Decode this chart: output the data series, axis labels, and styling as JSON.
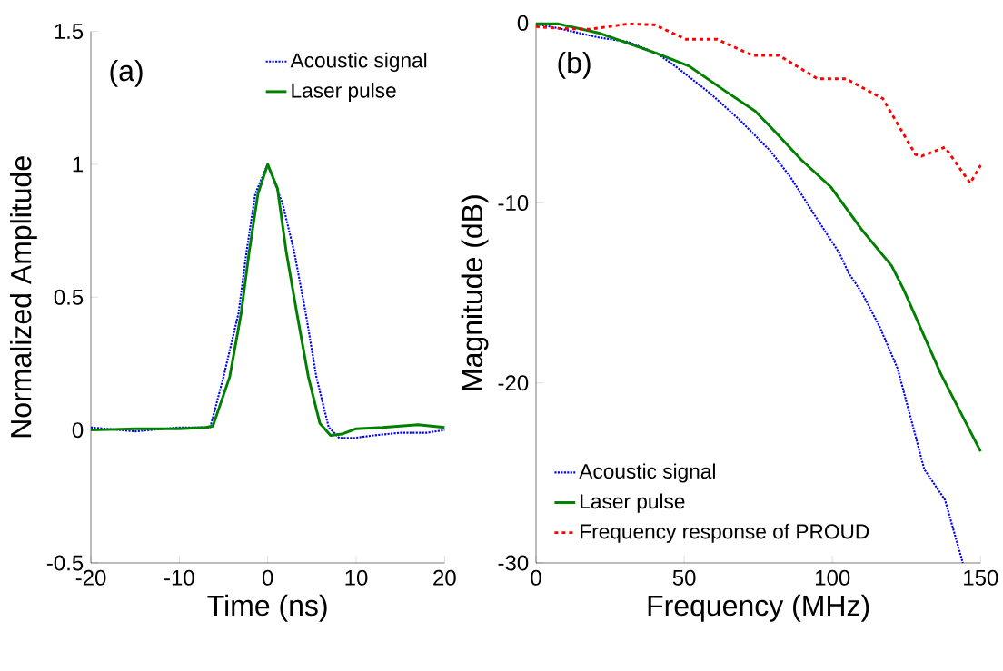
{
  "chart_data": [
    {
      "type": "line",
      "xlabel": "Time (ns)",
      "ylabel": "Normalized Amplitude",
      "annotations": [
        "(a)"
      ],
      "xlim": [
        -20,
        20
      ],
      "ylim": [
        -0.5,
        1.5
      ],
      "xticks": [
        -20,
        -10,
        0,
        10,
        20
      ],
      "yticks": [
        -0.5,
        0,
        0.5,
        1,
        1.5
      ],
      "legend": "top right",
      "grid": false,
      "series": [
        {
          "name": "Acoustic signal",
          "color": "#0000ff",
          "line_style": "dotted",
          "x": [
            -20,
            -15,
            -10,
            -6.5,
            -5,
            -3.3,
            -2.4,
            -1.4,
            0,
            1.7,
            3.0,
            4.3,
            5.5,
            6.9,
            8.1,
            9.7,
            12,
            15,
            18,
            20
          ],
          "values": [
            0.01,
            -0.005,
            0.01,
            0.01,
            0.2,
            0.44,
            0.67,
            0.89,
            1.0,
            0.85,
            0.67,
            0.44,
            0.2,
            0.01,
            -0.03,
            -0.03,
            -0.02,
            -0.01,
            -0.01,
            0.0
          ]
        },
        {
          "name": "Laser pulse",
          "color": "#008000",
          "line_style": "solid",
          "x": [
            -20,
            -15,
            -10,
            -7,
            -6.2,
            -4.3,
            -3.0,
            -2.1,
            -1.1,
            0,
            1.1,
            2.1,
            3.3,
            4.6,
            5.9,
            7.1,
            8.4,
            10,
            13,
            17,
            20
          ],
          "values": [
            0,
            0.005,
            0.005,
            0.01,
            0.015,
            0.2,
            0.44,
            0.67,
            0.89,
            1.0,
            0.91,
            0.67,
            0.44,
            0.2,
            0.025,
            -0.02,
            -0.015,
            0.005,
            0.01,
            0.02,
            0.01
          ]
        }
      ]
    },
    {
      "type": "line",
      "xlabel": "Frequency (MHz)",
      "ylabel": "Magnitude (dB)",
      "annotations": [
        "(b)"
      ],
      "xlim": [
        0,
        150
      ],
      "ylim": [
        -30,
        0
      ],
      "xticks": [
        0,
        50,
        100,
        150
      ],
      "yticks": [
        -30,
        -20,
        -10,
        0
      ],
      "legend": "bottom left",
      "grid": false,
      "series": [
        {
          "name": "Acoustic signal",
          "color": "#0000ff",
          "line_style": "dotted",
          "x": [
            0,
            7.6,
            21,
            31,
            41,
            48.6,
            58.7,
            68.8,
            79,
            86,
            94.5,
            102.4,
            105.5,
            110,
            116,
            122,
            127,
            131,
            138,
            144
          ],
          "values": [
            -0.05,
            -0.3,
            -0.8,
            -1.05,
            -1.7,
            -2.6,
            -3.9,
            -5.4,
            -7.1,
            -8.6,
            -10.8,
            -12.8,
            -13.9,
            -15,
            -16.9,
            -19.2,
            -22.3,
            -24.8,
            -26.5,
            -30
          ]
        },
        {
          "name": "Laser pulse",
          "color": "#008000",
          "line_style": "solid",
          "x": [
            0,
            7.6,
            21,
            41,
            51.7,
            64,
            74,
            81,
            89.5,
            99.4,
            110,
            120,
            124,
            136.6,
            150
          ],
          "values": [
            -0.05,
            -0.05,
            -0.55,
            -1.7,
            -2.4,
            -3.8,
            -4.9,
            -6.1,
            -7.6,
            -9.1,
            -11.5,
            -13.5,
            -14.8,
            -19.5,
            -23.8
          ]
        },
        {
          "name": "Frequency response of PROUD",
          "color": "#ff0000",
          "line_style": "dashed",
          "x": [
            0,
            7.6,
            18,
            31,
            40,
            50.5,
            61,
            73,
            82,
            95,
            104.6,
            117,
            128,
            130,
            138,
            146.5,
            150
          ],
          "values": [
            -0.2,
            -0.3,
            -0.35,
            -0.05,
            -0.1,
            -0.9,
            -0.9,
            -1.8,
            -1.8,
            -3.1,
            -3.1,
            -4.2,
            -7.3,
            -7.4,
            -6.9,
            -8.9,
            -7.9
          ]
        }
      ]
    }
  ]
}
